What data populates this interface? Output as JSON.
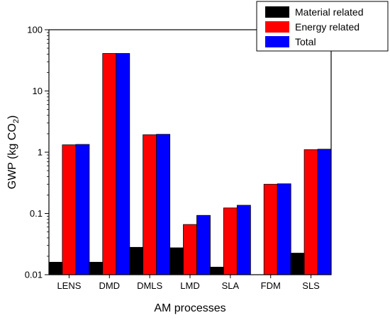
{
  "chart_data": {
    "type": "bar",
    "categories": [
      "LENS",
      "DMD",
      "DMLS",
      "LMD",
      "SLA",
      "FDM",
      "SLS"
    ],
    "series": [
      {
        "name": "Material related",
        "color": "#000000",
        "values": [
          0.016,
          0.016,
          0.028,
          0.0275,
          0.0133,
          null,
          0.0225
        ]
      },
      {
        "name": "Energy related",
        "color": "#ff0000",
        "values": [
          1.32,
          41.0,
          1.93,
          0.066,
          0.123,
          0.3,
          1.1
        ]
      },
      {
        "name": "Total",
        "color": "#0000ff",
        "values": [
          1.34,
          41.0,
          1.96,
          0.093,
          0.136,
          0.305,
          1.12
        ]
      }
    ],
    "xlabel": "AM processes",
    "ylabel_main": "GWP (kg CO",
    "ylabel_sub": "2",
    "ylabel_end": ")",
    "yscale": "log",
    "ylim": [
      0.01,
      100
    ],
    "yticks": [
      0.01,
      0.1,
      1,
      10,
      100
    ],
    "ytick_labels": [
      "0.01",
      "0.1",
      "1",
      "10",
      "100"
    ],
    "legend_position": "top-right",
    "grid": false
  }
}
